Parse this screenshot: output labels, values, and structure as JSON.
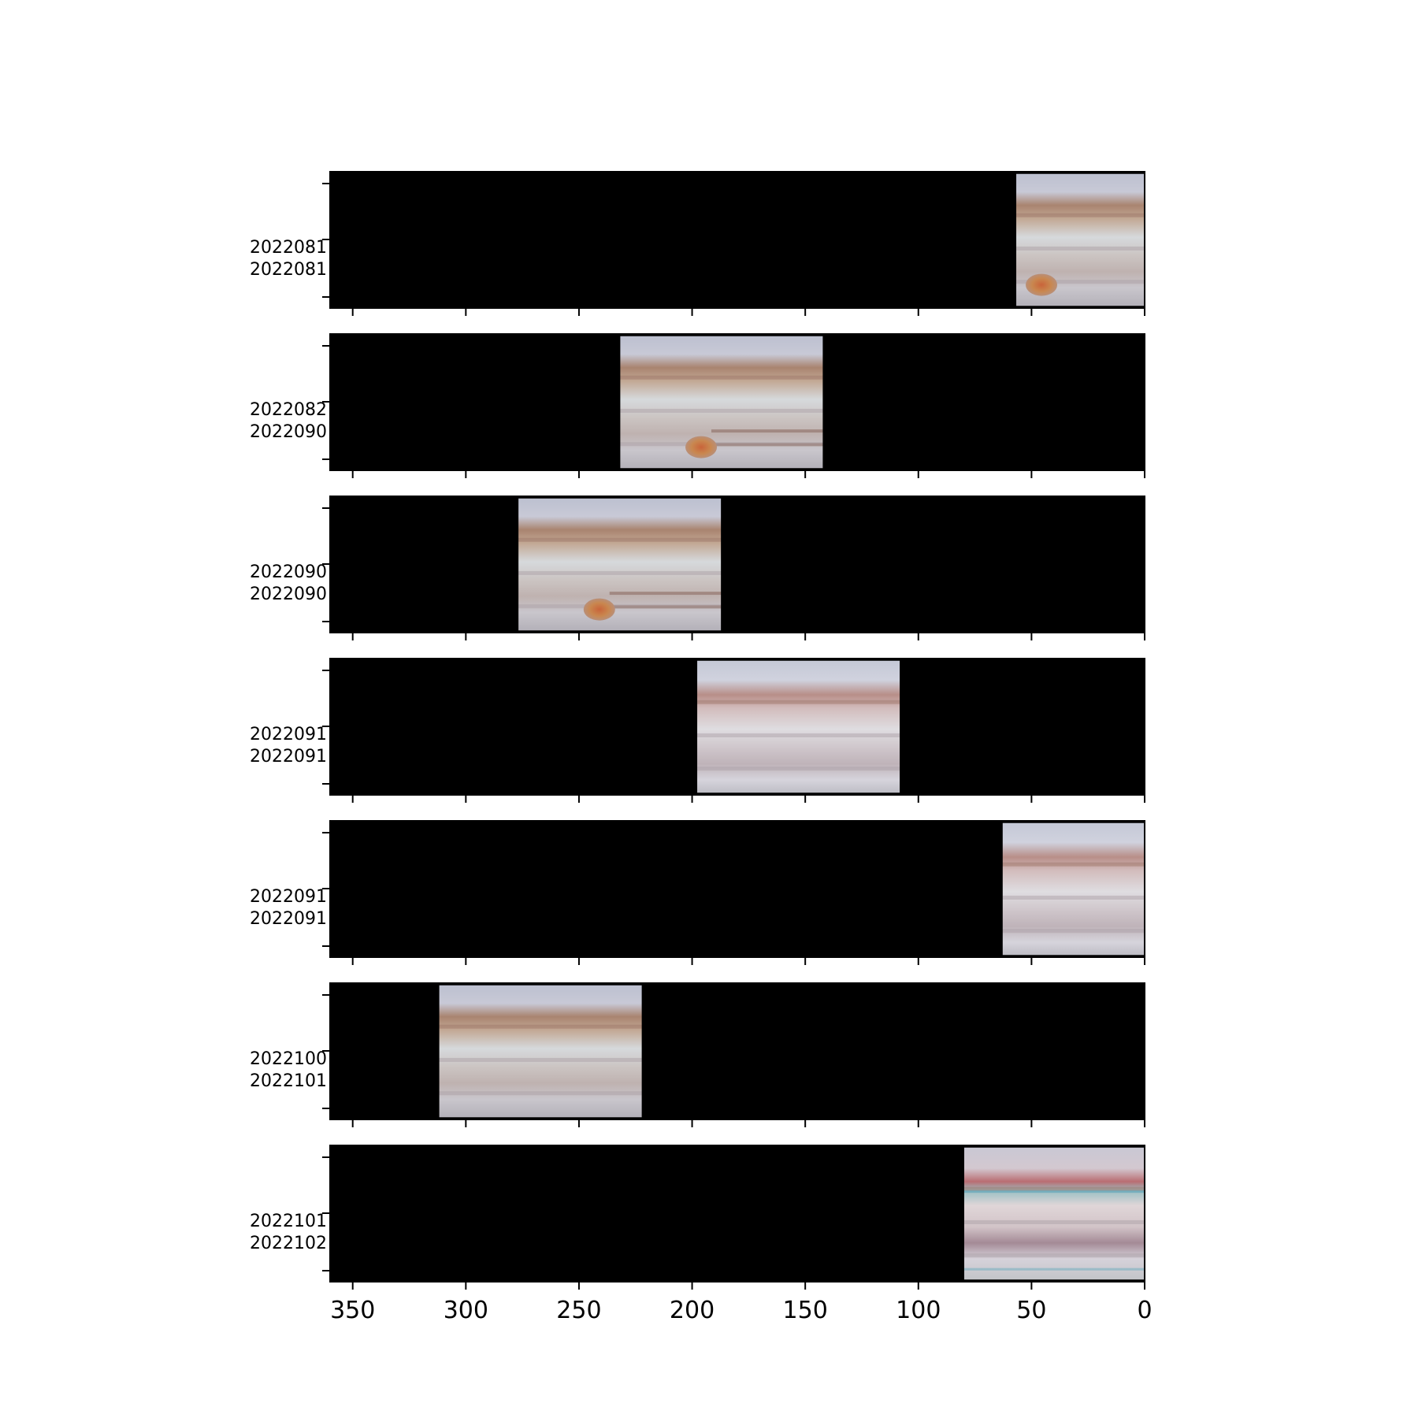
{
  "chart_data": {
    "type": "image",
    "xlabel": "",
    "ylabel": "",
    "xlim": [
      360,
      0
    ],
    "x_ticks": [
      350,
      300,
      250,
      200,
      150,
      100,
      50,
      0
    ],
    "x_tick_labels": [
      "350",
      "300",
      "250",
      "200",
      "150",
      "100",
      "50",
      "0"
    ],
    "panels": [
      {
        "y_tick_labels": [
          "2022081",
          "2022081"
        ],
        "image_x_range": [
          57,
          0
        ],
        "features": [
          "spot"
        ]
      },
      {
        "y_tick_labels": [
          "2022082",
          "2022090"
        ],
        "image_x_range": [
          232,
          142
        ],
        "features": [
          "spot",
          "wake"
        ]
      },
      {
        "y_tick_labels": [
          "2022090",
          "2022090"
        ],
        "image_x_range": [
          277,
          187
        ],
        "features": [
          "spot",
          "wake"
        ]
      },
      {
        "y_tick_labels": [
          "2022091",
          "2022091"
        ],
        "image_x_range": [
          198,
          108
        ],
        "features": []
      },
      {
        "y_tick_labels": [
          "2022091",
          "2022091"
        ],
        "image_x_range": [
          63,
          0
        ],
        "features": []
      },
      {
        "y_tick_labels": [
          "2022100",
          "2022101"
        ],
        "image_x_range": [
          312,
          222
        ],
        "features": []
      },
      {
        "y_tick_labels": [
          "2022101",
          "2022102"
        ],
        "image_x_range": [
          80,
          0
        ],
        "features": [
          "rainbow"
        ]
      }
    ]
  }
}
